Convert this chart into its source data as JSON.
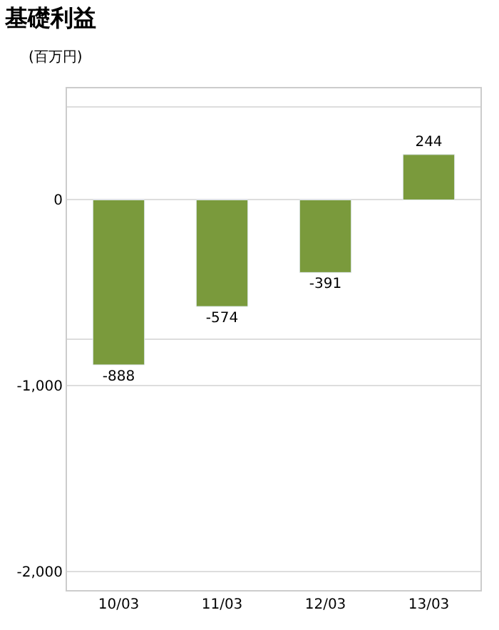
{
  "chart_data": {
    "type": "bar",
    "title": "基礎利益",
    "subtitle": "(百万円)",
    "categories": [
      "10/03",
      "11/03",
      "12/03",
      "13/03"
    ],
    "values": [
      -888,
      -574,
      -391,
      244
    ],
    "color": "#7a9a3c",
    "data_labels": true,
    "ylim": [
      -2100,
      600
    ],
    "yticks": [
      {
        "value": 500,
        "label": null
      },
      0,
      {
        "value": -750,
        "label": null
      },
      {
        "value": -1000,
        "label": "-1,000"
      },
      {
        "value": -2000,
        "label": "-2,000"
      }
    ],
    "grid": "y",
    "legend": false
  }
}
